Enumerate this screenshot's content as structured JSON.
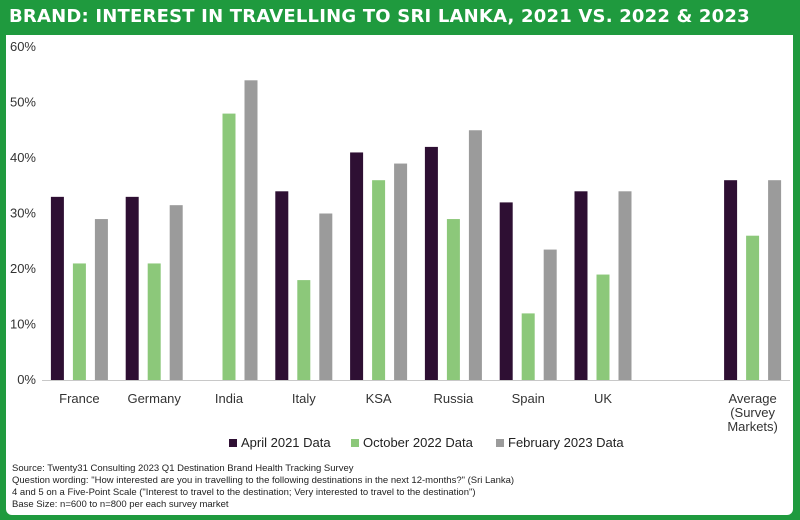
{
  "header": {
    "title": "BRAND: INTEREST IN TRAVELLING TO SRI LANKA, 2021 VS. 2022 & 2023"
  },
  "chart_data": {
    "type": "bar",
    "categories": [
      "France",
      "Germany",
      "India",
      "Italy",
      "KSA",
      "Russia",
      "Spain",
      "UK",
      "Average (Survey Markets)"
    ],
    "category_lines": [
      [
        "France"
      ],
      [
        "Germany"
      ],
      [
        "India"
      ],
      [
        "Italy"
      ],
      [
        "KSA"
      ],
      [
        "Russia"
      ],
      [
        "Spain"
      ],
      [
        "UK"
      ],
      [
        "Average",
        "(Survey",
        "Markets)"
      ]
    ],
    "series": [
      {
        "name": "April 2021 Data",
        "color": "#2e0f33",
        "values": [
          33,
          33,
          null,
          34,
          41,
          42,
          32,
          34,
          36
        ]
      },
      {
        "name": "October 2022 Data",
        "color": "#8cc87a",
        "values": [
          21,
          21,
          48,
          18,
          36,
          29,
          12,
          19,
          26
        ]
      },
      {
        "name": "February 2023 Data",
        "color": "#9b9b9b",
        "values": [
          29,
          31.5,
          54,
          30,
          39,
          45,
          23.5,
          34,
          36
        ]
      }
    ],
    "y_ticks": [
      "0%",
      "10%",
      "20%",
      "30%",
      "40%",
      "50%",
      "60%"
    ],
    "ylim": [
      0,
      60
    ],
    "grid": false,
    "legend": "bottom-center"
  },
  "notes": {
    "line1": "Source: Twenty31 Consulting 2023 Q1 Destination Brand Health Tracking Survey",
    "line2": "Question wording: \"How interested are you in travelling to the following destinations in the next 12-months?\" (Sri Lanka)",
    "line3": "4 and 5 on a Five-Point Scale (\"Interest to travel to the destination; Very interested to travel to the destination\")",
    "line4": "Base Size: n=600 to n=800 per each survey market"
  }
}
